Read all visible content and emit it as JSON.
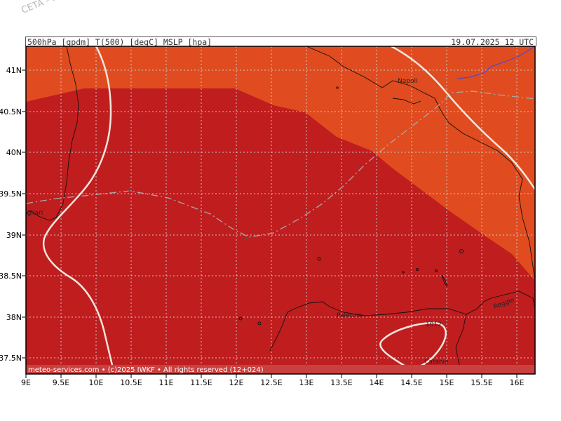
{
  "watermark": "CETA - Inst. ...",
  "header": {
    "left": "500hPa_[gpdm]_T(500)_[degC]_MSLP_[hpa]",
    "right": "19.07.2025 12 UTC"
  },
  "footer": "meteo-services.com • (c)2025 IWKF • All rights reserved (12+024)",
  "x_ticks": [
    "9E",
    "9.5E",
    "10E",
    "10.5E",
    "11E",
    "11.5E",
    "12E",
    "12.5E",
    "13E",
    "13.5E",
    "14E",
    "14.5E",
    "15E",
    "15.5E",
    "16E"
  ],
  "y_ticks": [
    "41N",
    "40.5N",
    "40N",
    "39.5N",
    "39N",
    "38.5N",
    "38N",
    "37.5N"
  ],
  "places": {
    "napoli": "Napoli",
    "cagliari": "Cagliari",
    "palermo": "Palermo",
    "reggio": "Reggio",
    "catania": "Catania",
    "isobar_label": "1012"
  },
  "colors": {
    "warm_zone": "#e04c1f",
    "hot_zone": "#c01d1f",
    "footer_band": "#c94040",
    "isoline": "#f2e6dc",
    "gridline": "#bbbbbb"
  }
}
